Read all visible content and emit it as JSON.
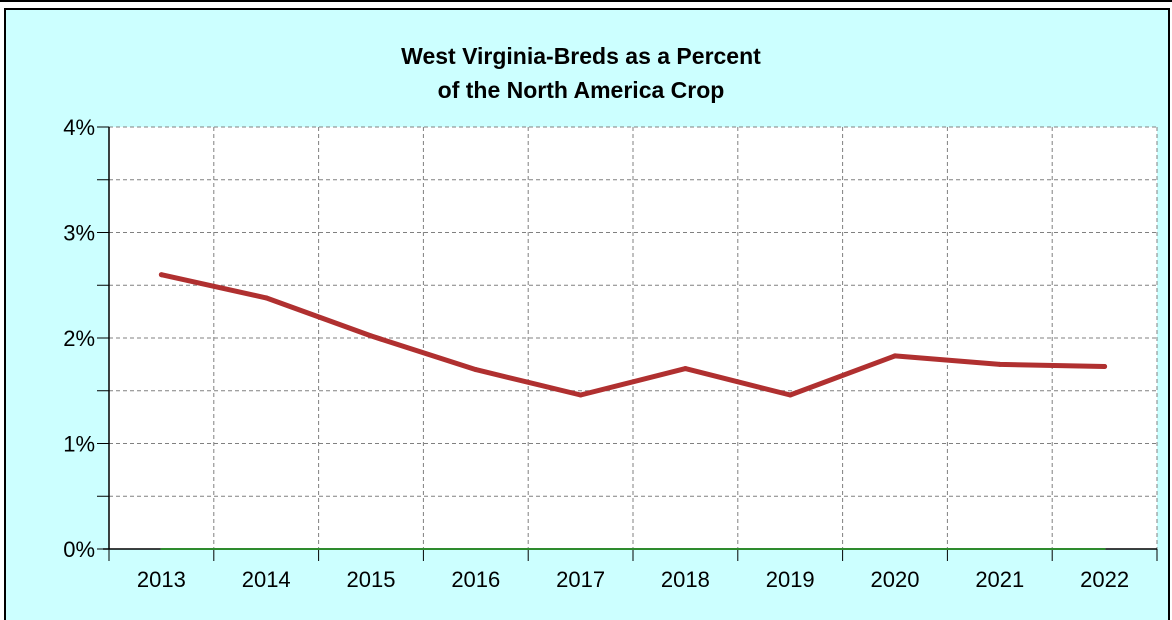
{
  "chart_data": {
    "type": "line",
    "title": "West Virginia-Breds as a Percent",
    "subtitle": "of the North America Crop",
    "xlabel": "",
    "ylabel": "",
    "categories": [
      "2013",
      "2014",
      "2015",
      "2016",
      "2017",
      "2018",
      "2019",
      "2020",
      "2021",
      "2022"
    ],
    "series": [
      {
        "values": [
          2.6,
          2.38,
          2.02,
          1.7,
          1.46,
          1.71,
          1.46,
          1.83,
          1.75,
          1.73
        ],
        "color": "#b03030"
      },
      {
        "values": [
          0,
          0,
          0,
          0,
          0,
          0,
          0,
          0,
          0,
          0
        ],
        "color": "#2e8b2e"
      }
    ],
    "ylim": [
      0,
      4
    ],
    "yticks": [
      "0%",
      "1%",
      "2%",
      "3%",
      "4%"
    ],
    "grid": true,
    "plot_background": "#ffffff",
    "panel_background": "#ccffff"
  }
}
